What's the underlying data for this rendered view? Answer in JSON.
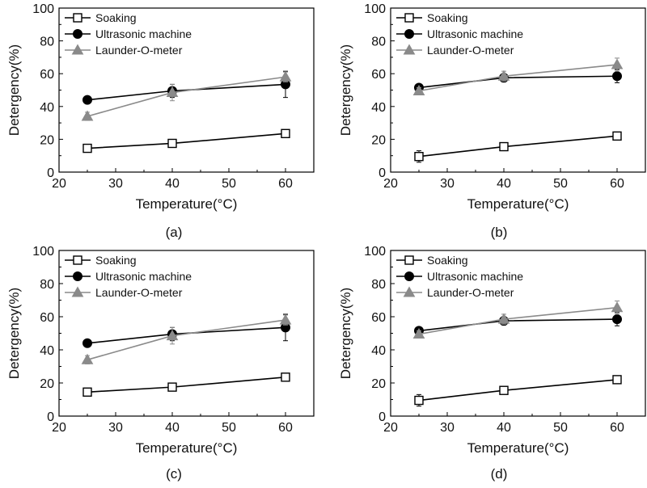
{
  "figure_name": "detergency-vs-temperature",
  "colors": {
    "axis": "#000000",
    "soaking": "#000000",
    "ultrasonic": "#000000",
    "launder": "#8a8a8a",
    "background": "#ffffff"
  },
  "chart_data": [
    {
      "id": "a",
      "caption": "(a)",
      "type": "line",
      "xlabel": "Temperature(°C)",
      "ylabel": "Detergency(%)",
      "xlim": [
        20,
        65
      ],
      "ylim": [
        0,
        100
      ],
      "xticks": [
        20,
        30,
        40,
        50,
        60
      ],
      "yticks": [
        0,
        20,
        40,
        60,
        80,
        100
      ],
      "legend_position": "top-left",
      "series": [
        {
          "name": "Soaking",
          "marker": "open-square",
          "color": "#000000",
          "x": [
            25,
            40,
            60
          ],
          "y": [
            14.5,
            17.5,
            23.5
          ],
          "err": [
            2,
            1.5,
            1.5
          ]
        },
        {
          "name": "Ultrasonic machine",
          "marker": "filled-circle",
          "color": "#000000",
          "x": [
            25,
            40,
            60
          ],
          "y": [
            44,
            49.5,
            53.5
          ],
          "err": [
            1.5,
            4,
            8
          ]
        },
        {
          "name": "Launder-O-meter",
          "marker": "filled-triangle",
          "color": "#8a8a8a",
          "x": [
            25,
            40,
            60
          ],
          "y": [
            34,
            48.5,
            58
          ],
          "err": [
            2.5,
            5,
            3
          ]
        }
      ]
    },
    {
      "id": "b",
      "caption": "(b)",
      "type": "line",
      "xlabel": "Temperature(°C)",
      "ylabel": "Detergency(%)",
      "xlim": [
        20,
        65
      ],
      "ylim": [
        0,
        100
      ],
      "xticks": [
        20,
        30,
        40,
        50,
        60
      ],
      "yticks": [
        0,
        20,
        40,
        60,
        80,
        100
      ],
      "legend_position": "top-left",
      "series": [
        {
          "name": "Soaking",
          "marker": "open-square",
          "color": "#000000",
          "x": [
            25,
            40,
            60
          ],
          "y": [
            9.5,
            15.5,
            22
          ],
          "err": [
            3.5,
            1,
            1.5
          ]
        },
        {
          "name": "Ultrasonic machine",
          "marker": "filled-circle",
          "color": "#000000",
          "x": [
            25,
            40,
            60
          ],
          "y": [
            51.5,
            57.5,
            58.5
          ],
          "err": [
            2,
            2.5,
            4
          ]
        },
        {
          "name": "Launder-O-meter",
          "marker": "filled-triangle",
          "color": "#8a8a8a",
          "x": [
            25,
            40,
            60
          ],
          "y": [
            49.5,
            58.5,
            65.5
          ],
          "err": [
            2,
            3,
            4
          ]
        }
      ]
    },
    {
      "id": "c",
      "caption": "(c)",
      "type": "line",
      "xlabel": "Temperature(°C)",
      "ylabel": "Detergency(%)",
      "xlim": [
        20,
        65
      ],
      "ylim": [
        0,
        100
      ],
      "xticks": [
        20,
        30,
        40,
        50,
        60
      ],
      "yticks": [
        0,
        20,
        40,
        60,
        80,
        100
      ],
      "legend_position": "top-left",
      "series": [
        {
          "name": "Soaking",
          "marker": "open-square",
          "color": "#000000",
          "x": [
            25,
            40,
            60
          ],
          "y": [
            14.5,
            17.5,
            23.5
          ],
          "err": [
            2,
            1.5,
            1.5
          ]
        },
        {
          "name": "Ultrasonic machine",
          "marker": "filled-circle",
          "color": "#000000",
          "x": [
            25,
            40,
            60
          ],
          "y": [
            44,
            49.5,
            53.5
          ],
          "err": [
            1.5,
            4,
            8
          ]
        },
        {
          "name": "Launder-O-meter",
          "marker": "filled-triangle",
          "color": "#8a8a8a",
          "x": [
            25,
            40,
            60
          ],
          "y": [
            34,
            48.5,
            58
          ],
          "err": [
            2.5,
            5,
            3
          ]
        }
      ]
    },
    {
      "id": "d",
      "caption": "(d)",
      "type": "line",
      "xlabel": "Temperature(°C)",
      "ylabel": "Detergency(%)",
      "xlim": [
        20,
        65
      ],
      "ylim": [
        0,
        100
      ],
      "xticks": [
        20,
        30,
        40,
        50,
        60
      ],
      "yticks": [
        0,
        20,
        40,
        60,
        80,
        100
      ],
      "legend_position": "top-left",
      "series": [
        {
          "name": "Soaking",
          "marker": "open-square",
          "color": "#000000",
          "x": [
            25,
            40,
            60
          ],
          "y": [
            9.5,
            15.5,
            22
          ],
          "err": [
            3.5,
            1,
            1.5
          ]
        },
        {
          "name": "Ultrasonic machine",
          "marker": "filled-circle",
          "color": "#000000",
          "x": [
            25,
            40,
            60
          ],
          "y": [
            51.5,
            57.5,
            58.5
          ],
          "err": [
            2,
            2.5,
            4
          ]
        },
        {
          "name": "Launder-O-meter",
          "marker": "filled-triangle",
          "color": "#8a8a8a",
          "x": [
            25,
            40,
            60
          ],
          "y": [
            49.5,
            58.5,
            65.5
          ],
          "err": [
            2,
            3,
            4
          ]
        }
      ]
    }
  ]
}
